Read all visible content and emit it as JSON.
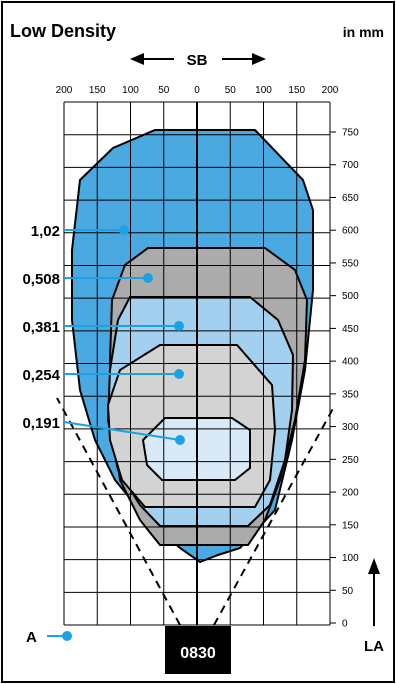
{
  "title": "Low Density",
  "units": "in mm",
  "sb_label": "SB",
  "la_label": "LA",
  "a_label": "A",
  "model": "0830",
  "top_ticks": [
    "200",
    "150",
    "100",
    "50",
    "0",
    "50",
    "100",
    "150",
    "200"
  ],
  "right_ticks": [
    "750",
    "700",
    "650",
    "600",
    "550",
    "500",
    "450",
    "400",
    "350",
    "300",
    "250",
    "200",
    "150",
    "100",
    "50",
    "0"
  ],
  "zones": [
    {
      "label": "1,02",
      "color": "#4aa9e0"
    },
    {
      "label": "0,508",
      "color": "#ababab"
    },
    {
      "label": "0,381",
      "color": "#a3d0ef"
    },
    {
      "label": "0,254",
      "color": "#d3d3d3"
    },
    {
      "label": "0,191",
      "color": "#d8e9f8"
    }
  ],
  "colors": {
    "callout": "#1aa3e3",
    "frame": "#000000"
  }
}
